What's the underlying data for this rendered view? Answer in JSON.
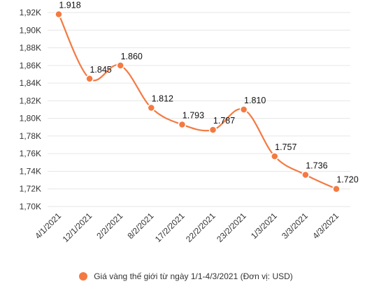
{
  "chart_data": {
    "type": "line",
    "categories": [
      "4/1/2021",
      "12/1/2021",
      "2/2/2021",
      "8/2/2021",
      "17/2/2021",
      "22/2/2021",
      "23/2/2021",
      "1/3/2021",
      "3/3/2021",
      "4/3/2021"
    ],
    "series": [
      {
        "name": "Giá vàng thế giới từ ngày 1/1-4/3/2021 (Đơn vị: USD)",
        "values": [
          1918,
          1845,
          1860,
          1812,
          1793,
          1787,
          1810,
          1757,
          1736,
          1720
        ],
        "data_labels": [
          "1.918",
          "1.845",
          "1.860",
          "1.812",
          "1.793",
          "1.787",
          "1.810",
          "1.757",
          "1.736",
          "1.720"
        ]
      }
    ],
    "ylim": [
      1700,
      1920
    ],
    "yticks": [
      1700,
      1720,
      1740,
      1760,
      1780,
      1800,
      1820,
      1840,
      1860,
      1880,
      1900,
      1920
    ],
    "ytick_labels": [
      "1,70K",
      "1,72K",
      "1,74K",
      "1,76K",
      "1,78K",
      "1,80K",
      "1,82K",
      "1,84K",
      "1,86K",
      "1,88K",
      "1,90K",
      "1,92K"
    ],
    "xlabel": "",
    "ylabel": "",
    "grid": true,
    "legend_position": "bottom",
    "color": "#f47a42"
  }
}
